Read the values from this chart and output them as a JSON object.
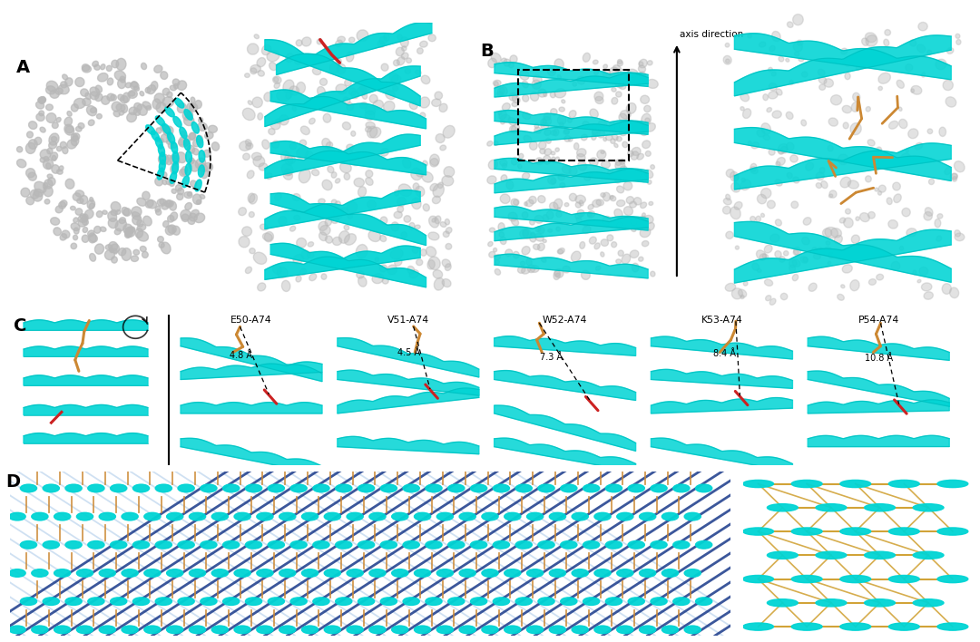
{
  "bg_color": "#ffffff",
  "panel_labels": [
    "A",
    "B",
    "C",
    "D"
  ],
  "panel_label_fontsize": 14,
  "panel_label_color": "#000000",
  "panel_label_weight": "bold",
  "section_C_titles": [
    "E50-A74",
    "V51-A74",
    "W52-A74",
    "K53-A74",
    "P54-A74"
  ],
  "section_C_distances": [
    "4.8 Å",
    "4.5 Å",
    "7.3 Å",
    "8.4 Å",
    "10.8 Å"
  ],
  "axis_direction_label": "axis direction",
  "cyan_color": "#00d4d4",
  "cyan_dark": "#00b8b8",
  "blue_dark": "#1a3a8a",
  "blue_medium": "#2255cc",
  "gray_blob": "#b8b8b8",
  "gray_inner": "#a0a0a0",
  "orange_stick": "#cc8833",
  "red_stick": "#cc2222",
  "gold_line": "#cc9922",
  "light_blue_line": "#a8c8e8"
}
